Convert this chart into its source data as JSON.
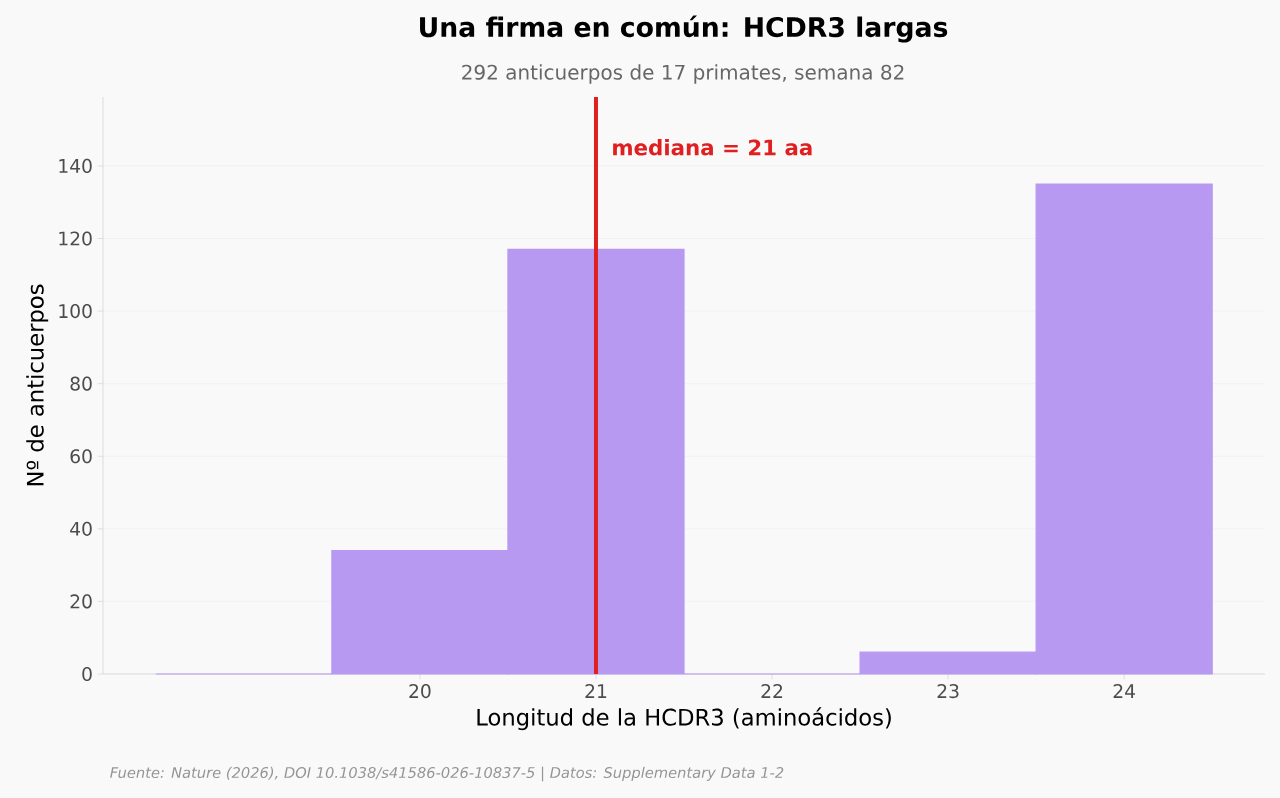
{
  "chart_data": {
    "type": "histogram",
    "title": "Una firma en común: HCDR3 largas",
    "subtitle": "292 anticuerpos de 17 primates, semana 82",
    "xlabel": "Longitud de la HCDR3 (aminoácidos)",
    "ylabel": "Nº de anticuerpos",
    "bins": [
      18.5,
      19.5,
      20.5,
      21.5,
      22.5,
      23.5,
      24.5
    ],
    "values": [
      0,
      34,
      117,
      0,
      6,
      135
    ],
    "color": "#b899f2",
    "xlim": [
      18.2,
      24.8
    ],
    "ylim": [
      0,
      159
    ],
    "xticks": [
      20,
      21,
      22,
      23,
      24
    ],
    "yticks": [
      0,
      20,
      40,
      60,
      80,
      100,
      120,
      140
    ],
    "grid": "y",
    "ref_lines": [
      {
        "axis": "x",
        "value": 21,
        "label": "mediana = 21 aa",
        "color": "#e02020"
      }
    ],
    "annotations": [
      "Fuente: Nature (2026), DOI 10.1038/s41586-026-10837-5 | Datos: Supplementary Data 1-2"
    ]
  }
}
